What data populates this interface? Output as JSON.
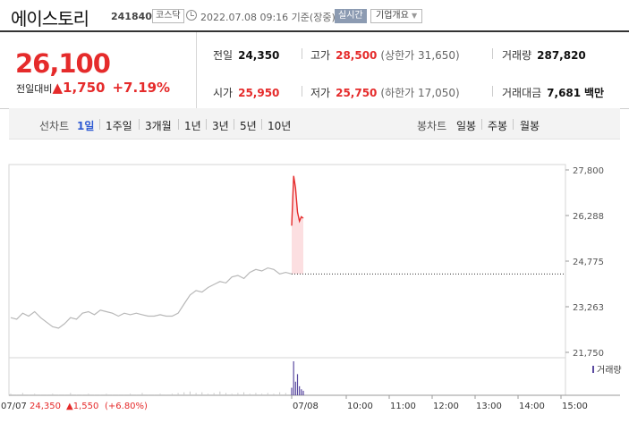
{
  "header": {
    "stock_name": "에이스토리",
    "stock_code": "241840",
    "market": "코스닥",
    "timestamp": "2022.07.08 09:16 기준(장중)",
    "realtime_label": "실시간",
    "company_overview_label": "기업개요"
  },
  "quote": {
    "current_price": "26,100",
    "change_label": "전일대비",
    "change_direction": "▲",
    "change_amount": "1,750",
    "change_percent": "+7.19%",
    "prev_close": {
      "label": "전일",
      "value": "24,350"
    },
    "high": {
      "label": "고가",
      "value": "28,500",
      "limit_label": "상한가",
      "limit_value": "31,650"
    },
    "volume": {
      "label": "거래량",
      "value": "287,820"
    },
    "open": {
      "label": "시가",
      "value": "25,950"
    },
    "low": {
      "label": "저가",
      "value": "25,750",
      "limit_label": "하한가",
      "limit_value": "17,050"
    },
    "trade_value": {
      "label": "거래대금",
      "value": "7,681",
      "unit": "백만"
    }
  },
  "periods": {
    "line_chart_label": "선차트",
    "items": [
      "1일",
      "1주일",
      "3개월",
      "1년",
      "3년",
      "5년",
      "10년"
    ],
    "active": "1일",
    "candle_label": "봉차트",
    "candle_items": [
      "일봉",
      "주봉",
      "월봉"
    ]
  },
  "colors": {
    "up": "#e52b2b",
    "down": "#2f5bd3",
    "prev_day_line": "#b8b8b8",
    "volume_today": "#5a4aa0"
  },
  "chart_data": {
    "type": "line",
    "ylim": [
      21750,
      27800
    ],
    "yticks": [
      "27,800",
      "26,288",
      "24,775",
      "23,263",
      "21,750"
    ],
    "xticks": [
      "07/08",
      "10:00",
      "11:00",
      "12:00",
      "13:00",
      "14:00",
      "15:00"
    ],
    "prev_close_value": 24350,
    "prev_day": {
      "date": "07/07",
      "values": [
        22900,
        22850,
        23050,
        22950,
        23100,
        22900,
        22750,
        22600,
        22550,
        22700,
        22900,
        22850,
        23050,
        23100,
        23000,
        23150,
        23100,
        23050,
        22950,
        23050,
        23000,
        23050,
        23000,
        22950,
        22950,
        23000,
        22950,
        22950,
        23050,
        23350,
        23650,
        23800,
        23750,
        23900,
        24000,
        24100,
        24050,
        24250,
        24300,
        24200,
        24400,
        24500,
        24450,
        24550,
        24500,
        24350,
        24400,
        24350
      ]
    },
    "today": {
      "values": [
        25950,
        27600,
        27200,
        26400,
        26100,
        26250,
        26200
      ]
    },
    "volume_label": "거래량",
    "prev_day_volume": [
      2,
      1,
      3,
      1,
      2,
      1,
      1,
      2,
      1,
      1,
      3,
      1,
      1,
      2,
      1,
      1,
      2,
      1,
      1,
      1,
      2,
      1,
      3,
      1,
      1,
      2,
      1,
      2,
      3,
      4,
      5,
      3,
      4,
      2,
      3,
      5,
      3,
      2,
      3,
      4,
      2,
      3,
      2,
      3,
      2,
      4,
      3,
      2
    ],
    "today_volume": [
      10,
      45,
      18,
      28,
      12,
      8,
      6
    ]
  },
  "footer": {
    "prev_date": "07/07",
    "prev_close": "24,350",
    "prev_change": "▲1,550",
    "prev_change_pct": "(+6.80%)"
  }
}
